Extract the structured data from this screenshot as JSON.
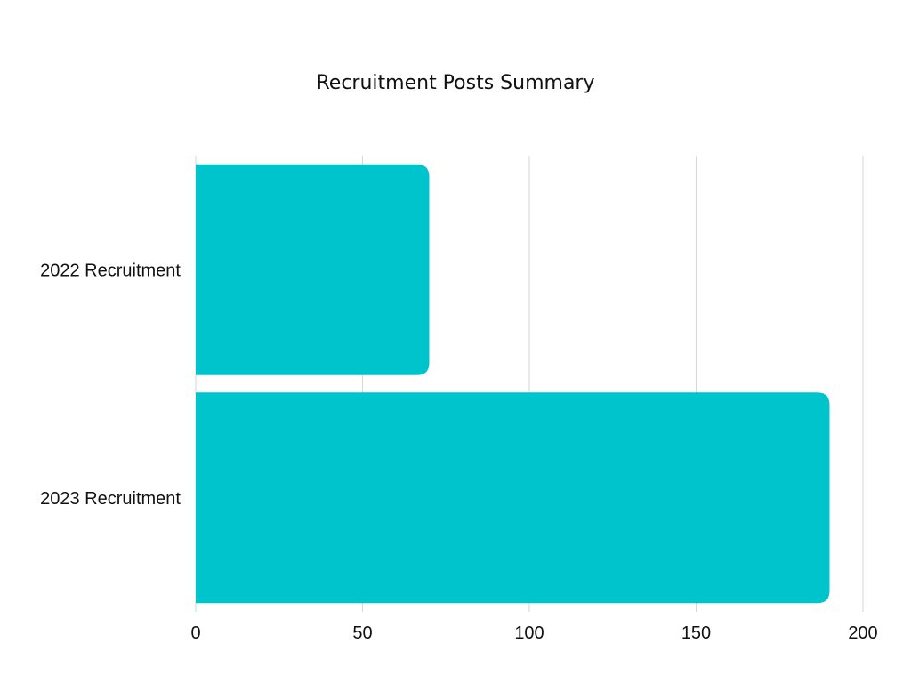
{
  "chart_data": {
    "type": "bar",
    "orientation": "horizontal",
    "title": "Recruitment Posts Summary",
    "categories": [
      "2022 Recruitment",
      "2023 Recruitment"
    ],
    "values": [
      70,
      190
    ],
    "xlabel": "",
    "ylabel": "",
    "xlim": [
      0,
      200
    ],
    "x_ticks": [
      "0",
      "50",
      "100",
      "150",
      "200"
    ],
    "grid": "vertical",
    "legend": "none",
    "colors": {
      "bar": "#00c4cc",
      "grid": "#d6d6d6",
      "text": "#111111"
    }
  }
}
